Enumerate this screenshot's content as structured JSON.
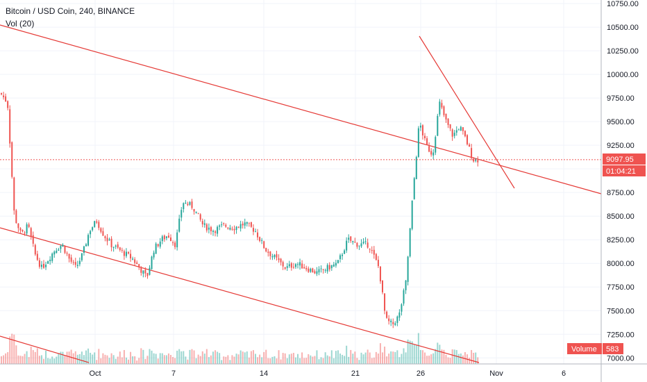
{
  "header": {
    "title": "Bitcoin / USD Coin, 240, BINANCE",
    "volume_indicator": "Vol (20)"
  },
  "price_axis": {
    "labels": [
      "7000.00",
      "7250.00",
      "7500.00",
      "7750.00",
      "8000.00",
      "8250.00",
      "8500.00",
      "8750.00",
      "9000.00",
      "9250.00",
      "9500.00",
      "9750.00",
      "10000.00",
      "10250.00",
      "10500.00",
      "10750.00"
    ],
    "current_price": "9097.95",
    "countdown": "01:04:21"
  },
  "time_axis": {
    "labels": [
      "Oct",
      "7",
      "14",
      "21",
      "26",
      "Nov",
      "6"
    ]
  },
  "volume_badge": {
    "label": "Volume",
    "value": "583"
  },
  "colors": {
    "up": "#26a69a",
    "down": "#ef5350",
    "trendline": "#e53935",
    "grid": "#f0f3fa",
    "axis_border": "#b2b5be"
  },
  "chart_data": {
    "type": "candlestick",
    "title": "Bitcoin / USD Coin, 240, BINANCE",
    "y_range": [
      6980,
      10780
    ],
    "y_ticks": [
      7000,
      7250,
      7500,
      7750,
      8000,
      8250,
      8500,
      8750,
      9000,
      9250,
      9500,
      9750,
      10000,
      10250,
      10500,
      10750
    ],
    "x_ticks": [
      "Oct",
      "7",
      "14",
      "21",
      "26",
      "Nov",
      "6"
    ],
    "last_price": 9097.95,
    "grid": true,
    "series": [
      {
        "segment": "late Sep",
        "closes": [
          9800,
          9700,
          8500,
          8300,
          8400,
          8100,
          7950,
          8050,
          8150,
          8200,
          8050,
          7950,
          8100
        ]
      },
      {
        "segment": "early Oct",
        "closes": [
          8350,
          8450,
          8300,
          8200,
          8150,
          8100,
          8050,
          7950,
          7850,
          8150,
          8250,
          8300,
          8200
        ]
      },
      {
        "segment": "mid Oct",
        "closes": [
          8650,
          8600,
          8400,
          8350,
          8400,
          8380,
          8420,
          8350,
          8150,
          8050,
          7950,
          8000,
          7950,
          7900,
          7950,
          8000,
          8250,
          8200,
          8200
        ]
      },
      {
        "segment": "late Oct",
        "closes": [
          7950,
          7400,
          7350,
          7450,
          7800,
          8700,
          9500,
          9250,
          9150,
          9700,
          9500,
          9350,
          9450,
          9300,
          9100
        ]
      }
    ],
    "trendlines": [
      {
        "from": [
          "Sep",
          10450
        ],
        "to": [
          "Nov+",
          8750
        ]
      },
      {
        "from": [
          "Sep",
          8400
        ],
        "to": [
          "Oct 29",
          7000
        ]
      },
      {
        "from": [
          "Oct 26",
          10380
        ],
        "to": [
          "Nov",
          8780
        ]
      }
    ]
  }
}
